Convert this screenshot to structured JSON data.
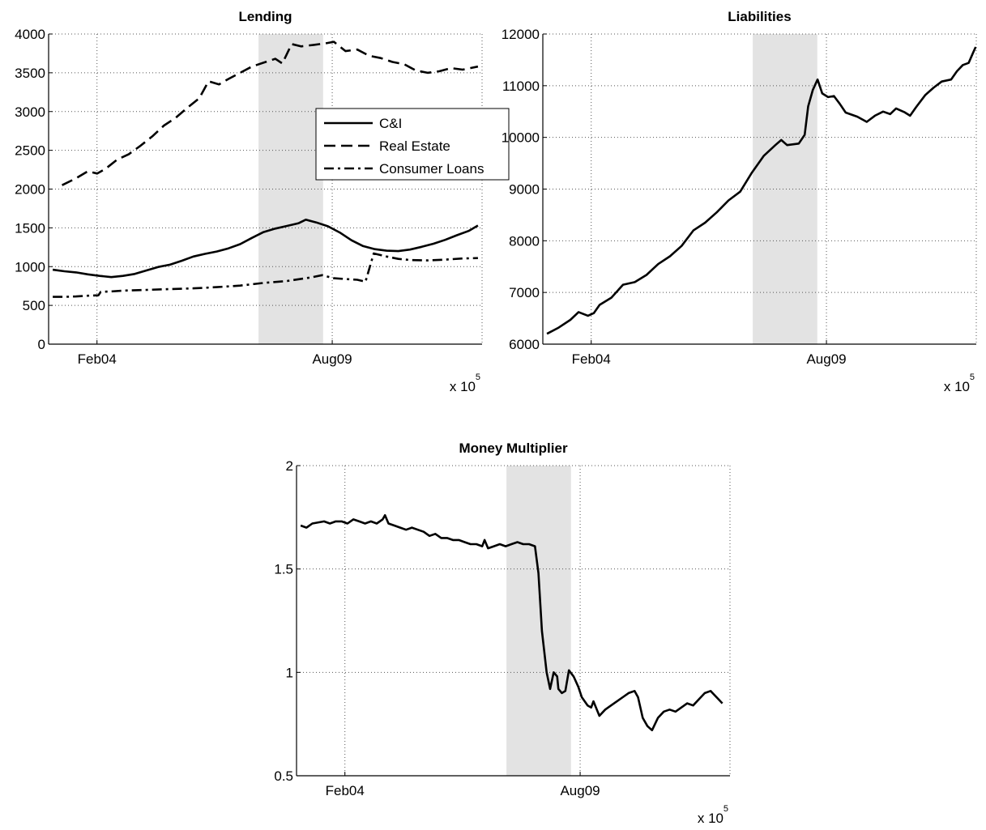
{
  "chart_data": [
    {
      "id": "lending",
      "type": "line",
      "title": "Lending",
      "xlabel": "",
      "ylabel": "",
      "xlim": [
        731565,
        735265
      ],
      "ylim": [
        0,
        4000
      ],
      "yticks": [
        0,
        500,
        1000,
        1500,
        2000,
        2500,
        3000,
        3500,
        4000
      ],
      "xticks": [
        {
          "value": 731978,
          "label": "Feb04"
        },
        {
          "value": 733986,
          "label": "Aug09"
        }
      ],
      "x_exponent": {
        "base": "x 10",
        "power": "5"
      },
      "grid": true,
      "shaded_region": [
        733357,
        733908
      ],
      "legend": {
        "position": "top-right",
        "entries": [
          "C&I",
          "Real Estate",
          "Consumer Loans"
        ]
      },
      "series": [
        {
          "name": "C&I",
          "style": "solid",
          "points": [
            [
              731600,
              960
            ],
            [
              731700,
              940
            ],
            [
              731800,
              925
            ],
            [
              731900,
              900
            ],
            [
              732000,
              880
            ],
            [
              732100,
              865
            ],
            [
              732200,
              880
            ],
            [
              732300,
              905
            ],
            [
              732400,
              950
            ],
            [
              732500,
              995
            ],
            [
              732600,
              1025
            ],
            [
              732700,
              1075
            ],
            [
              732800,
              1130
            ],
            [
              732900,
              1165
            ],
            [
              733000,
              1195
            ],
            [
              733100,
              1235
            ],
            [
              733200,
              1290
            ],
            [
              733300,
              1370
            ],
            [
              733400,
              1445
            ],
            [
              733500,
              1490
            ],
            [
              733600,
              1525
            ],
            [
              733700,
              1560
            ],
            [
              733760,
              1605
            ],
            [
              733850,
              1570
            ],
            [
              733950,
              1520
            ],
            [
              734050,
              1440
            ],
            [
              734150,
              1340
            ],
            [
              734250,
              1265
            ],
            [
              734350,
              1225
            ],
            [
              734450,
              1205
            ],
            [
              734550,
              1200
            ],
            [
              734650,
              1220
            ],
            [
              734750,
              1255
            ],
            [
              734850,
              1295
            ],
            [
              734950,
              1345
            ],
            [
              735050,
              1405
            ],
            [
              735150,
              1460
            ],
            [
              735230,
              1530
            ]
          ]
        },
        {
          "name": "Real Estate",
          "style": "dashed",
          "points": [
            [
              731680,
              2050
            ],
            [
              731800,
              2140
            ],
            [
              731900,
              2230
            ],
            [
              731980,
              2200
            ],
            [
              732050,
              2260
            ],
            [
              732150,
              2380
            ],
            [
              732250,
              2450
            ],
            [
              732350,
              2560
            ],
            [
              732450,
              2680
            ],
            [
              732550,
              2820
            ],
            [
              732650,
              2920
            ],
            [
              732750,
              3050
            ],
            [
              732850,
              3170
            ],
            [
              732930,
              3390
            ],
            [
              733020,
              3350
            ],
            [
              733100,
              3420
            ],
            [
              733200,
              3500
            ],
            [
              733300,
              3580
            ],
            [
              733400,
              3630
            ],
            [
              733500,
              3680
            ],
            [
              733560,
              3620
            ],
            [
              733640,
              3870
            ],
            [
              733720,
              3840
            ],
            [
              733830,
              3860
            ],
            [
              733930,
              3880
            ],
            [
              734000,
              3900
            ],
            [
              734100,
              3780
            ],
            [
              734200,
              3800
            ],
            [
              734300,
              3720
            ],
            [
              734400,
              3690
            ],
            [
              734500,
              3640
            ],
            [
              734600,
              3610
            ],
            [
              734700,
              3530
            ],
            [
              734800,
              3500
            ],
            [
              734900,
              3520
            ],
            [
              735000,
              3560
            ],
            [
              735100,
              3540
            ],
            [
              735230,
              3580
            ]
          ]
        },
        {
          "name": "Consumer Loans",
          "style": "dashdot",
          "points": [
            [
              731600,
              610
            ],
            [
              731700,
              610
            ],
            [
              731800,
              615
            ],
            [
              731900,
              625
            ],
            [
              731990,
              630
            ],
            [
              732010,
              675
            ],
            [
              732100,
              680
            ],
            [
              732200,
              690
            ],
            [
              732400,
              700
            ],
            [
              732600,
              710
            ],
            [
              732800,
              720
            ],
            [
              733000,
              735
            ],
            [
              733200,
              755
            ],
            [
              733400,
              790
            ],
            [
              733600,
              815
            ],
            [
              733800,
              860
            ],
            [
              733900,
              890
            ],
            [
              734000,
              850
            ],
            [
              734100,
              840
            ],
            [
              734200,
              830
            ],
            [
              734270,
              805
            ],
            [
              734340,
              1170
            ],
            [
              734450,
              1130
            ],
            [
              734550,
              1100
            ],
            [
              734650,
              1085
            ],
            [
              734800,
              1080
            ],
            [
              734950,
              1090
            ],
            [
              735100,
              1105
            ],
            [
              735230,
              1110
            ]
          ]
        }
      ]
    },
    {
      "id": "liabilities",
      "type": "line",
      "title": "Liabilities",
      "xlabel": "",
      "ylabel": "",
      "xlim": [
        731565,
        735265
      ],
      "ylim": [
        6000,
        12000
      ],
      "yticks": [
        6000,
        7000,
        8000,
        9000,
        10000,
        11000,
        12000
      ],
      "xticks": [
        {
          "value": 731978,
          "label": "Feb04"
        },
        {
          "value": 733986,
          "label": "Aug09"
        }
      ],
      "x_exponent": {
        "base": "x 10",
        "power": "5"
      },
      "grid": true,
      "shaded_region": [
        733357,
        733908
      ],
      "series": [
        {
          "name": "",
          "style": "solid",
          "points": [
            [
              731600,
              6200
            ],
            [
              731700,
              6320
            ],
            [
              731800,
              6470
            ],
            [
              731870,
              6620
            ],
            [
              731950,
              6550
            ],
            [
              732000,
              6600
            ],
            [
              732050,
              6760
            ],
            [
              732150,
              6900
            ],
            [
              732250,
              7150
            ],
            [
              732350,
              7200
            ],
            [
              732450,
              7340
            ],
            [
              732550,
              7550
            ],
            [
              732650,
              7700
            ],
            [
              732750,
              7900
            ],
            [
              732850,
              8200
            ],
            [
              732950,
              8350
            ],
            [
              733050,
              8550
            ],
            [
              733150,
              8780
            ],
            [
              733250,
              8950
            ],
            [
              733350,
              9320
            ],
            [
              733450,
              9640
            ],
            [
              733550,
              9850
            ],
            [
              733600,
              9950
            ],
            [
              733650,
              9850
            ],
            [
              733750,
              9880
            ],
            [
              733800,
              10050
            ],
            [
              733830,
              10600
            ],
            [
              733870,
              10920
            ],
            [
              733910,
              11120
            ],
            [
              733950,
              10850
            ],
            [
              734000,
              10780
            ],
            [
              734050,
              10800
            ],
            [
              734100,
              10650
            ],
            [
              734150,
              10480
            ],
            [
              734250,
              10400
            ],
            [
              734330,
              10300
            ],
            [
              734400,
              10420
            ],
            [
              734470,
              10500
            ],
            [
              734530,
              10450
            ],
            [
              734580,
              10560
            ],
            [
              734650,
              10490
            ],
            [
              734700,
              10420
            ],
            [
              734750,
              10580
            ],
            [
              734830,
              10820
            ],
            [
              734900,
              10960
            ],
            [
              734970,
              11080
            ],
            [
              735050,
              11120
            ],
            [
              735100,
              11280
            ],
            [
              735150,
              11400
            ],
            [
              735200,
              11440
            ],
            [
              735240,
              11650
            ],
            [
              735260,
              11750
            ]
          ]
        }
      ]
    },
    {
      "id": "money-multiplier",
      "type": "line",
      "title": "Money Multiplier",
      "xlabel": "",
      "ylabel": "",
      "xlim": [
        731565,
        735265
      ],
      "ylim": [
        0.5,
        2
      ],
      "yticks": [
        0.5,
        1,
        1.5,
        2
      ],
      "xticks": [
        {
          "value": 731978,
          "label": "Feb04"
        },
        {
          "value": 733986,
          "label": "Aug09"
        }
      ],
      "x_exponent": {
        "base": "x 10",
        "power": "5"
      },
      "grid": true,
      "shaded_region": [
        733357,
        733908
      ],
      "series": [
        {
          "name": "",
          "style": "solid",
          "points": [
            [
              731600,
              1.71
            ],
            [
              731650,
              1.7
            ],
            [
              731700,
              1.72
            ],
            [
              731800,
              1.73
            ],
            [
              731850,
              1.72
            ],
            [
              731900,
              1.73
            ],
            [
              731950,
              1.73
            ],
            [
              732000,
              1.72
            ],
            [
              732050,
              1.74
            ],
            [
              732100,
              1.73
            ],
            [
              732150,
              1.72
            ],
            [
              732200,
              1.73
            ],
            [
              732250,
              1.72
            ],
            [
              732300,
              1.74
            ],
            [
              732320,
              1.76
            ],
            [
              732350,
              1.72
            ],
            [
              732400,
              1.71
            ],
            [
              732450,
              1.7
            ],
            [
              732500,
              1.69
            ],
            [
              732550,
              1.7
            ],
            [
              732600,
              1.69
            ],
            [
              732650,
              1.68
            ],
            [
              732700,
              1.66
            ],
            [
              732750,
              1.67
            ],
            [
              732800,
              1.65
            ],
            [
              732850,
              1.65
            ],
            [
              732900,
              1.64
            ],
            [
              732950,
              1.64
            ],
            [
              733000,
              1.63
            ],
            [
              733050,
              1.62
            ],
            [
              733100,
              1.62
            ],
            [
              733150,
              1.61
            ],
            [
              733170,
              1.64
            ],
            [
              733200,
              1.6
            ],
            [
              733250,
              1.61
            ],
            [
              733300,
              1.62
            ],
            [
              733350,
              1.61
            ],
            [
              733400,
              1.62
            ],
            [
              733450,
              1.63
            ],
            [
              733500,
              1.62
            ],
            [
              733550,
              1.62
            ],
            [
              733600,
              1.61
            ],
            [
              733630,
              1.48
            ],
            [
              733660,
              1.2
            ],
            [
              733700,
              1.0
            ],
            [
              733730,
              0.92
            ],
            [
              733760,
              1.0
            ],
            [
              733790,
              0.98
            ],
            [
              733800,
              0.92
            ],
            [
              733830,
              0.9
            ],
            [
              733860,
              0.91
            ],
            [
              733890,
              1.01
            ],
            [
              733930,
              0.98
            ],
            [
              733970,
              0.93
            ],
            [
              734000,
              0.88
            ],
            [
              734050,
              0.84
            ],
            [
              734080,
              0.83
            ],
            [
              734100,
              0.86
            ],
            [
              734150,
              0.79
            ],
            [
              734200,
              0.82
            ],
            [
              734250,
              0.84
            ],
            [
              734300,
              0.86
            ],
            [
              734350,
              0.88
            ],
            [
              734400,
              0.9
            ],
            [
              734450,
              0.91
            ],
            [
              734480,
              0.88
            ],
            [
              734520,
              0.78
            ],
            [
              734560,
              0.74
            ],
            [
              734600,
              0.72
            ],
            [
              734650,
              0.78
            ],
            [
              734700,
              0.81
            ],
            [
              734750,
              0.82
            ],
            [
              734800,
              0.81
            ],
            [
              734850,
              0.83
            ],
            [
              734900,
              0.85
            ],
            [
              734950,
              0.84
            ],
            [
              735000,
              0.87
            ],
            [
              735050,
              0.9
            ],
            [
              735100,
              0.91
            ],
            [
              735150,
              0.88
            ],
            [
              735200,
              0.85
            ]
          ]
        }
      ]
    }
  ]
}
